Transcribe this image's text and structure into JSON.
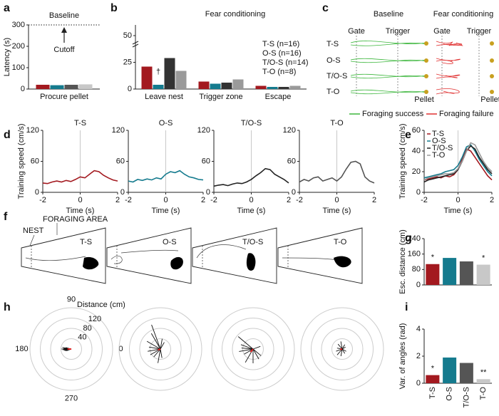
{
  "chart_data": [
    {
      "type": "bar",
      "panel": "a",
      "categories": [
        "Procure pellet"
      ],
      "ylabel": "Latency (s)",
      "ylim": [
        0,
        300
      ],
      "yticks": [
        0,
        100,
        200,
        300
      ],
      "annotations": [
        "Baseline",
        "Cutoff"
      ],
      "series": [
        {
          "name": "T-S",
          "color": "#a3191f",
          "values": [
            20
          ]
        },
        {
          "name": "O-S",
          "color": "#157b8e",
          "values": [
            18
          ]
        },
        {
          "name": "T/O-S",
          "color": "#555555",
          "values": [
            20
          ]
        },
        {
          "name": "T-O",
          "color": "#c8c8c8",
          "values": [
            22
          ]
        }
      ]
    },
    {
      "type": "bar",
      "panel": "b",
      "title": "Fear conditioning",
      "categories": [
        "Leave nest",
        "Trigger zone",
        "Escape"
      ],
      "ylim": [
        0,
        60
      ],
      "yticks": [
        0,
        25,
        50
      ],
      "legend": true,
      "series": [
        {
          "name": "T-S (n=16)",
          "color": "#a3191f",
          "values": [
            21,
            7,
            3
          ]
        },
        {
          "name": "O-S (n=16)",
          "color": "#157b8e",
          "values": [
            4,
            5,
            2
          ],
          "significance": [
            "†",
            null,
            null
          ]
        },
        {
          "name": "T/O-S (n=14)",
          "color": "#333333",
          "values": [
            29,
            6,
            2
          ]
        },
        {
          "name": "T-O (n=8)",
          "color": "#9a9a9a",
          "values": [
            17,
            9,
            3
          ]
        }
      ]
    },
    {
      "type": "line",
      "panel": "d",
      "title": "T-S",
      "ylabel": "Training speed (cm/s)",
      "xlabel": "Time (s)",
      "xlim": [
        -2,
        2
      ],
      "xticks": [
        -2,
        0,
        2
      ],
      "ylim": [
        0,
        120
      ],
      "yticks": [
        0,
        60,
        120
      ],
      "zero_line": true,
      "x": [
        -2,
        -1.75,
        -1.5,
        -1.25,
        -1,
        -0.75,
        -0.5,
        -0.25,
        0,
        0.25,
        0.5,
        0.75,
        1,
        1.25,
        1.5,
        1.75,
        2
      ],
      "series": [
        {
          "color": "#a3191f",
          "values": [
            18,
            17,
            20,
            22,
            20,
            23,
            21,
            25,
            30,
            28,
            35,
            42,
            40,
            33,
            28,
            24,
            22
          ]
        }
      ]
    },
    {
      "type": "line",
      "title": "O-S",
      "xlabel": "Time (s)",
      "xlim": [
        -2,
        2
      ],
      "xticks": [
        -2,
        0,
        2
      ],
      "ylim": [
        0,
        120
      ],
      "yticks": [
        0,
        60,
        120
      ],
      "zero_line": true,
      "x": [
        -2,
        -1.75,
        -1.5,
        -1.25,
        -1,
        -0.75,
        -0.5,
        -0.25,
        0,
        0.25,
        0.5,
        0.75,
        1,
        1.25,
        1.5,
        1.75,
        2
      ],
      "series": [
        {
          "color": "#157b8e",
          "values": [
            22,
            20,
            25,
            23,
            26,
            24,
            28,
            26,
            35,
            40,
            38,
            42,
            35,
            30,
            28,
            25,
            24
          ]
        }
      ]
    },
    {
      "type": "line",
      "title": "T/O-S",
      "xlabel": "Time (s)",
      "xlim": [
        -2,
        2
      ],
      "xticks": [
        -2,
        0,
        2
      ],
      "ylim": [
        0,
        120
      ],
      "yticks": [
        0,
        60,
        120
      ],
      "zero_line": true,
      "x": [
        -2,
        -1.75,
        -1.5,
        -1.25,
        -1,
        -0.75,
        -0.5,
        -0.25,
        0,
        0.25,
        0.5,
        0.75,
        1,
        1.25,
        1.5,
        1.75,
        2
      ],
      "series": [
        {
          "color": "#222222",
          "values": [
            12,
            14,
            15,
            13,
            16,
            18,
            17,
            20,
            25,
            32,
            38,
            46,
            44,
            35,
            30,
            25,
            18
          ]
        }
      ]
    },
    {
      "type": "line",
      "title": "T-O",
      "xlabel": "Time (s)",
      "xlim": [
        -2,
        2
      ],
      "xticks": [
        -2,
        0,
        2
      ],
      "ylim": [
        0,
        120
      ],
      "yticks": [
        0,
        60,
        120
      ],
      "zero_line": true,
      "x": [
        -2,
        -1.75,
        -1.5,
        -1.25,
        -1,
        -0.75,
        -0.5,
        -0.25,
        0,
        0.25,
        0.5,
        0.75,
        1,
        1.25,
        1.5,
        1.75,
        2
      ],
      "series": [
        {
          "color": "#555555",
          "values": [
            20,
            25,
            22,
            28,
            30,
            22,
            25,
            28,
            22,
            30,
            45,
            58,
            60,
            55,
            30,
            22,
            18
          ]
        }
      ]
    },
    {
      "type": "line",
      "panel": "e",
      "ylabel": "Training speed (cm/s)",
      "xlabel": "Time (s)",
      "xlim": [
        -2,
        2
      ],
      "xticks": [
        -2,
        0,
        2
      ],
      "ylim": [
        0,
        60
      ],
      "yticks": [
        0,
        20,
        40,
        60
      ],
      "zero_line": true,
      "legend": true,
      "x": [
        -2,
        -1.75,
        -1.5,
        -1.25,
        -1,
        -0.75,
        -0.5,
        -0.25,
        0,
        0.25,
        0.5,
        0.75,
        1,
        1.25,
        1.5,
        1.75,
        2
      ],
      "series": [
        {
          "name": "T-S",
          "color": "#a3191f",
          "values": [
            12,
            13,
            14,
            15,
            14,
            16,
            15,
            17,
            22,
            32,
            42,
            40,
            34,
            28,
            22,
            16,
            12
          ]
        },
        {
          "name": "O-S",
          "color": "#157b8e",
          "values": [
            14,
            15,
            16,
            17,
            18,
            20,
            21,
            22,
            26,
            34,
            44,
            46,
            40,
            32,
            26,
            20,
            16
          ]
        },
        {
          "name": "T/O-S",
          "color": "#222222",
          "values": [
            10,
            12,
            13,
            14,
            15,
            16,
            17,
            18,
            22,
            30,
            40,
            45,
            42,
            34,
            28,
            22,
            18
          ]
        },
        {
          "name": "T-O",
          "color": "#9a9a9a",
          "values": [
            12,
            14,
            15,
            16,
            17,
            18,
            18,
            19,
            23,
            30,
            40,
            48,
            46,
            38,
            30,
            24,
            20
          ]
        }
      ]
    },
    {
      "type": "bar",
      "panel": "g",
      "ylabel": "Esc. distance (cm)",
      "ylim": [
        0,
        240
      ],
      "yticks": [
        0,
        80,
        160,
        240
      ],
      "values": [
        108,
        140,
        122,
        105
      ],
      "colors": [
        "#a3191f",
        "#157b8e",
        "#555555",
        "#c8c8c8"
      ],
      "significance": [
        "*",
        null,
        null,
        "*"
      ]
    },
    {
      "type": "polar",
      "panel": "h",
      "rlabel": "Distance (cm)",
      "rlim": [
        0,
        160
      ],
      "rticks": [
        40,
        80,
        120
      ],
      "thetaticks": [
        90,
        180,
        0,
        270
      ],
      "color": "#111111",
      "mean_color": "#e02020",
      "theta": [
        170,
        175,
        180,
        185,
        190,
        195,
        200,
        165
      ],
      "values": [
        35,
        30,
        38,
        33,
        28,
        25,
        20,
        22
      ],
      "mean_theta": 180,
      "mean_value": 15
    },
    {
      "type": "polar",
      "rlim": [
        0,
        160
      ],
      "color": "#111111",
      "mean_color": "#e02020",
      "theta": [
        110,
        120,
        150,
        170,
        190,
        210,
        230,
        260,
        280,
        80,
        60
      ],
      "values": [
        100,
        70,
        60,
        45,
        50,
        45,
        40,
        55,
        35,
        40,
        30
      ],
      "mean_theta": 200,
      "mean_value": 10
    },
    {
      "type": "polar",
      "rlim": [
        0,
        160
      ],
      "color": "#111111",
      "mean_color": "#e02020",
      "theta": [
        140,
        160,
        175,
        190,
        210,
        240,
        270,
        300,
        320,
        20
      ],
      "values": [
        75,
        50,
        45,
        55,
        40,
        60,
        55,
        45,
        40,
        30
      ],
      "mean_theta": 230,
      "mean_value": 15
    },
    {
      "type": "polar",
      "rlim": [
        0,
        160
      ],
      "color": "#111111",
      "mean_color": "#e02020",
      "theta": [
        100,
        130,
        170,
        200,
        230,
        260,
        300,
        330,
        30,
        60
      ],
      "values": [
        30,
        25,
        20,
        25,
        30,
        28,
        20,
        18,
        15,
        20
      ],
      "mean_theta": 190,
      "mean_value": 8
    },
    {
      "type": "bar",
      "panel": "i",
      "ylabel": "Var. of angles (rad)",
      "ylim": [
        0,
        4
      ],
      "yticks": [
        0,
        2,
        4
      ],
      "categories": [
        "T-S",
        "O-S",
        "T/O-S",
        "T-O"
      ],
      "values": [
        0.6,
        1.9,
        1.5,
        0.3
      ],
      "colors": [
        "#a3191f",
        "#157b8e",
        "#555555",
        "#c8c8c8"
      ],
      "significance": [
        "*",
        null,
        null,
        "**"
      ]
    }
  ],
  "panel_c": {
    "panel": "c",
    "titles": [
      "Baseline",
      "Fear conditioning"
    ],
    "rows": [
      "T-S",
      "O-S",
      "T/O-S",
      "T-O"
    ],
    "gate": "Gate",
    "trigger": "Trigger",
    "pellet": "Pellet",
    "legend": [
      "Foraging success",
      "Foraging failure"
    ]
  },
  "panel_f": {
    "panel": "f",
    "nest": "NEST",
    "area": "FORAGING AREA",
    "labels": [
      "T-S",
      "O-S",
      "T/O-S",
      "T-O"
    ]
  }
}
